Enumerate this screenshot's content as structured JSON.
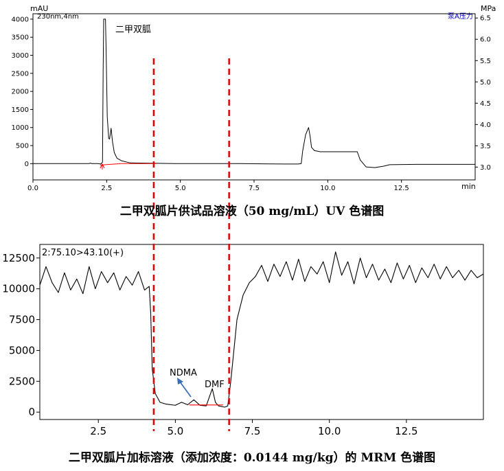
{
  "chart_data": [
    {
      "type": "line",
      "title": "",
      "caption": "二甲双胍片供试品溶液（50 mg/mL）UV 色谱图",
      "ylabel_left": "mAU",
      "ylabel_right": "MPa",
      "xlabel": "min",
      "trace_label": "230nm,4nm",
      "pressure_label": "泵A压力",
      "peak_label": "二甲双胍",
      "xlim": [
        0,
        15
      ],
      "ylim": [
        -450,
        4150
      ],
      "y2lim": [
        2.7,
        6.6
      ],
      "x_ticks": [
        "0.0",
        "2.5",
        "5.0",
        "7.5",
        "10.0",
        "12.5"
      ],
      "y_ticks": [
        "0",
        "500",
        "1000",
        "1500",
        "2000",
        "2500",
        "3000",
        "3500",
        "4000"
      ],
      "y2_ticks": [
        "3.0",
        "3.5",
        "4.0",
        "4.5",
        "5.0",
        "5.5",
        "6.0",
        "6.5"
      ],
      "series": [
        {
          "kind": "absorbance",
          "color": "#000000",
          "points": [
            [
              0,
              0
            ],
            [
              1.9,
              0
            ],
            [
              1.95,
              15
            ],
            [
              2.0,
              0
            ],
            [
              2.2,
              0
            ],
            [
              2.3,
              -10
            ],
            [
              2.36,
              40
            ],
            [
              2.38,
              2500
            ],
            [
              2.4,
              4000
            ],
            [
              2.46,
              4000
            ],
            [
              2.48,
              3200
            ],
            [
              2.52,
              1300
            ],
            [
              2.57,
              700
            ],
            [
              2.6,
              680
            ],
            [
              2.65,
              980
            ],
            [
              2.7,
              600
            ],
            [
              2.76,
              300
            ],
            [
              2.85,
              150
            ],
            [
              3.0,
              80
            ],
            [
              3.3,
              20
            ],
            [
              4.0,
              10
            ],
            [
              5.0,
              0
            ],
            [
              7.0,
              0
            ],
            [
              8.5,
              -10
            ],
            [
              9.0,
              -10
            ],
            [
              9.1,
              0
            ],
            [
              9.15,
              350
            ],
            [
              9.25,
              800
            ],
            [
              9.35,
              1000
            ],
            [
              9.4,
              760
            ],
            [
              9.45,
              450
            ],
            [
              9.55,
              360
            ],
            [
              9.75,
              330
            ],
            [
              10.5,
              330
            ],
            [
              11.0,
              330
            ],
            [
              11.1,
              100
            ],
            [
              11.3,
              -90
            ],
            [
              11.6,
              -110
            ],
            [
              11.9,
              -70
            ],
            [
              12.1,
              -30
            ],
            [
              13.0,
              -20
            ],
            [
              15,
              -20
            ]
          ]
        },
        {
          "kind": "integration-baseline",
          "color": "#ff0000",
          "points": [
            [
              2.28,
              -40
            ],
            [
              3.0,
              0
            ],
            [
              4.2,
              0
            ]
          ]
        }
      ]
    },
    {
      "type": "line",
      "title": "",
      "caption": "二甲双胍片加标溶液（添加浓度：0.0144 mg/kg）的 MRM 色谱图",
      "trace_label": "2:75.10>43.10(+)",
      "xlim": [
        0.6,
        15
      ],
      "ylim": [
        -600,
        13600
      ],
      "x_ticks": [
        "2.5",
        "5.0",
        "7.5",
        "10.0",
        "12.5"
      ],
      "y_ticks": [
        "0",
        "2500",
        "5000",
        "7500",
        "10000",
        "12500"
      ],
      "annotations": [
        "NDMA",
        "DMF"
      ],
      "series": [
        {
          "kind": "mrm",
          "color": "#000000",
          "points": [
            [
              0.6,
              10300
            ],
            [
              0.8,
              11800
            ],
            [
              1.0,
              10500
            ],
            [
              1.2,
              9700
            ],
            [
              1.4,
              11300
            ],
            [
              1.6,
              9900
            ],
            [
              1.8,
              10800
            ],
            [
              2.0,
              9600
            ],
            [
              2.2,
              11800
            ],
            [
              2.4,
              10000
            ],
            [
              2.6,
              11400
            ],
            [
              2.8,
              10500
            ],
            [
              3.0,
              11300
            ],
            [
              3.2,
              9900
            ],
            [
              3.4,
              11000
            ],
            [
              3.6,
              10300
            ],
            [
              3.8,
              11400
            ],
            [
              4.0,
              9900
            ],
            [
              4.15,
              10200
            ],
            [
              4.2,
              8000
            ],
            [
              4.25,
              3500
            ],
            [
              4.35,
              1500
            ],
            [
              4.5,
              800
            ],
            [
              4.7,
              650
            ],
            [
              5.0,
              550
            ],
            [
              5.2,
              800
            ],
            [
              5.4,
              600
            ],
            [
              5.6,
              1000
            ],
            [
              5.8,
              550
            ],
            [
              6.0,
              500
            ],
            [
              6.2,
              1900
            ],
            [
              6.3,
              800
            ],
            [
              6.4,
              500
            ],
            [
              6.6,
              400
            ],
            [
              6.7,
              500
            ],
            [
              6.8,
              2500
            ],
            [
              7.0,
              7500
            ],
            [
              7.2,
              9500
            ],
            [
              7.4,
              10500
            ],
            [
              7.6,
              11000
            ],
            [
              7.8,
              11900
            ],
            [
              8.0,
              10600
            ],
            [
              8.2,
              12000
            ],
            [
              8.4,
              11000
            ],
            [
              8.6,
              12200
            ],
            [
              8.8,
              10700
            ],
            [
              9.0,
              12400
            ],
            [
              9.2,
              10600
            ],
            [
              9.4,
              11800
            ],
            [
              9.6,
              11200
            ],
            [
              9.8,
              12200
            ],
            [
              10.0,
              10500
            ],
            [
              10.2,
              13000
            ],
            [
              10.4,
              11100
            ],
            [
              10.6,
              12200
            ],
            [
              10.8,
              10400
            ],
            [
              11.0,
              12500
            ],
            [
              11.2,
              10900
            ],
            [
              11.4,
              12000
            ],
            [
              11.6,
              10700
            ],
            [
              11.8,
              11600
            ],
            [
              12.0,
              10500
            ],
            [
              12.2,
              12100
            ],
            [
              12.4,
              10800
            ],
            [
              12.6,
              11900
            ],
            [
              12.8,
              10500
            ],
            [
              13.0,
              11700
            ],
            [
              13.2,
              10900
            ],
            [
              13.4,
              12000
            ],
            [
              13.6,
              10800
            ],
            [
              13.8,
              11800
            ],
            [
              14.0,
              10900
            ],
            [
              14.2,
              11500
            ],
            [
              14.4,
              10700
            ],
            [
              14.6,
              11500
            ],
            [
              14.8,
              10900
            ],
            [
              15.0,
              11200
            ]
          ]
        },
        {
          "kind": "integration-baseline",
          "color": "#ff0000",
          "points": [
            [
              5.45,
              580
            ],
            [
              6.55,
              580
            ]
          ]
        }
      ]
    }
  ],
  "overlay": {
    "dashed_line_color": "#e00000",
    "dashed_lines_x": [
      4.2,
      6.7
    ]
  }
}
